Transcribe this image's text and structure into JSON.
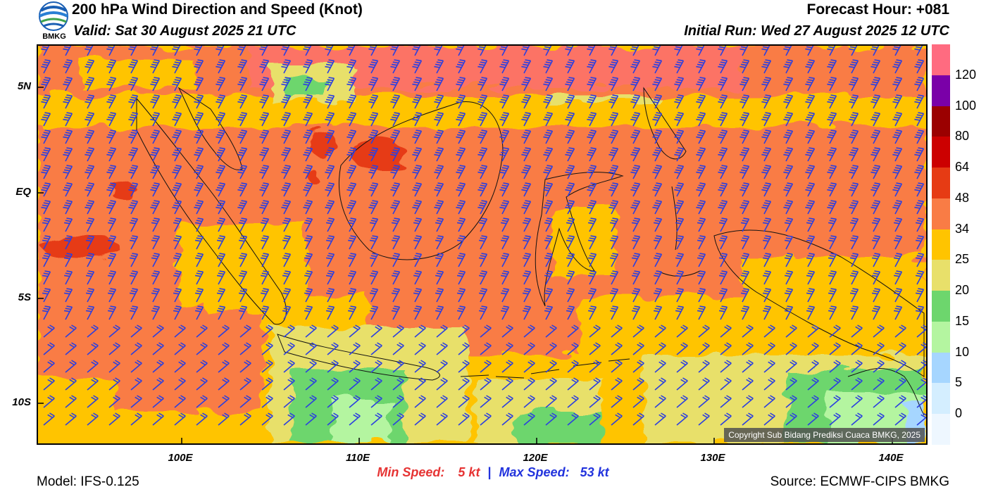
{
  "header": {
    "logo_text": "BMKG",
    "title": "200 hPa Wind Direction and Speed (Knot)",
    "valid": "Valid: Sat 30 August 2025 21 UTC",
    "forecast_hour": "Forecast Hour: +081",
    "initial_run": "Initial Run: Wed 27 August 2025 12 UTC"
  },
  "map": {
    "lat_labels": [
      "5N",
      "EQ",
      "5S",
      "10S"
    ],
    "lon_labels": [
      "100E",
      "110E",
      "120E",
      "130E",
      "140E"
    ],
    "copyright": "Copyright Sub Bidang Prediksi Cuaca BMKG, 2025",
    "barb_color": "#2b3fe0"
  },
  "legend": {
    "labels": [
      "120",
      "100",
      "80",
      "64",
      "48",
      "34",
      "25",
      "20",
      "15",
      "10",
      "5",
      "0"
    ],
    "colors": [
      "#ff6b80",
      "#7a00a8",
      "#9b0000",
      "#cc0000",
      "#e63b14",
      "#f97c45",
      "#ffc400",
      "#e8e06a",
      "#6dd66d",
      "#b4f5a0",
      "#a6d6ff",
      "#d4eeff",
      "#eef7ff"
    ]
  },
  "footer": {
    "min_label": "Min Speed:",
    "min_value": "5 kt",
    "separator": "|",
    "max_label": "Max Speed:",
    "max_value": "53 kt",
    "model": "Model: IFS-0.125",
    "source": "Source: ECMWF-CIPS BMKG"
  }
}
